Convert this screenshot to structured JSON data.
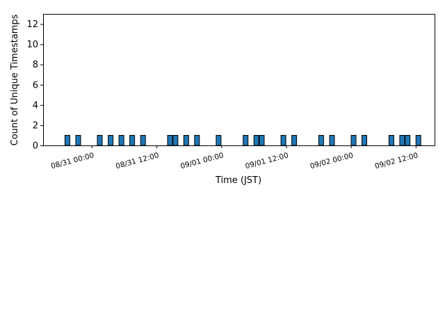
{
  "chart_data": {
    "type": "bar",
    "xlabel": "Time (JST)",
    "ylabel": "Count of Unique Timestamps",
    "ylim": [
      0,
      13
    ],
    "yticks": [
      0,
      2,
      4,
      6,
      8,
      10,
      12
    ],
    "xlim": [
      "08/30 15:00",
      "09/02 15:30"
    ],
    "xticks": [
      "08/31 00:00",
      "08/31 12:00",
      "09/01 00:00",
      "09/01 12:00",
      "09/02 00:00",
      "09/02 12:00"
    ],
    "xtick_rotation_deg": 15,
    "bar_color": "#1f77b4",
    "edge_color": "#000000",
    "grid": false,
    "bars": [
      {
        "t": "08/30 19:30",
        "count": 1
      },
      {
        "t": "08/30 21:30",
        "count": 1
      },
      {
        "t": "08/31 01:30",
        "count": 1
      },
      {
        "t": "08/31 03:30",
        "count": 1
      },
      {
        "t": "08/31 05:30",
        "count": 1
      },
      {
        "t": "08/31 07:30",
        "count": 1
      },
      {
        "t": "08/31 09:30",
        "count": 1
      },
      {
        "t": "08/31 14:30",
        "count": 1
      },
      {
        "t": "08/31 15:30",
        "count": 1
      },
      {
        "t": "08/31 17:30",
        "count": 1
      },
      {
        "t": "08/31 19:30",
        "count": 1
      },
      {
        "t": "08/31 23:30",
        "count": 1
      },
      {
        "t": "09/01 04:30",
        "count": 1
      },
      {
        "t": "09/01 06:30",
        "count": 1
      },
      {
        "t": "09/01 07:30",
        "count": 1
      },
      {
        "t": "09/01 11:30",
        "count": 1
      },
      {
        "t": "09/01 13:30",
        "count": 1
      },
      {
        "t": "09/01 18:30",
        "count": 1
      },
      {
        "t": "09/01 20:30",
        "count": 1
      },
      {
        "t": "09/02 00:30",
        "count": 1
      },
      {
        "t": "09/02 02:30",
        "count": 1
      },
      {
        "t": "09/02 07:30",
        "count": 1
      },
      {
        "t": "09/02 09:30",
        "count": 1
      },
      {
        "t": "09/02 10:30",
        "count": 1
      },
      {
        "t": "09/02 12:30",
        "count": 1
      }
    ]
  }
}
